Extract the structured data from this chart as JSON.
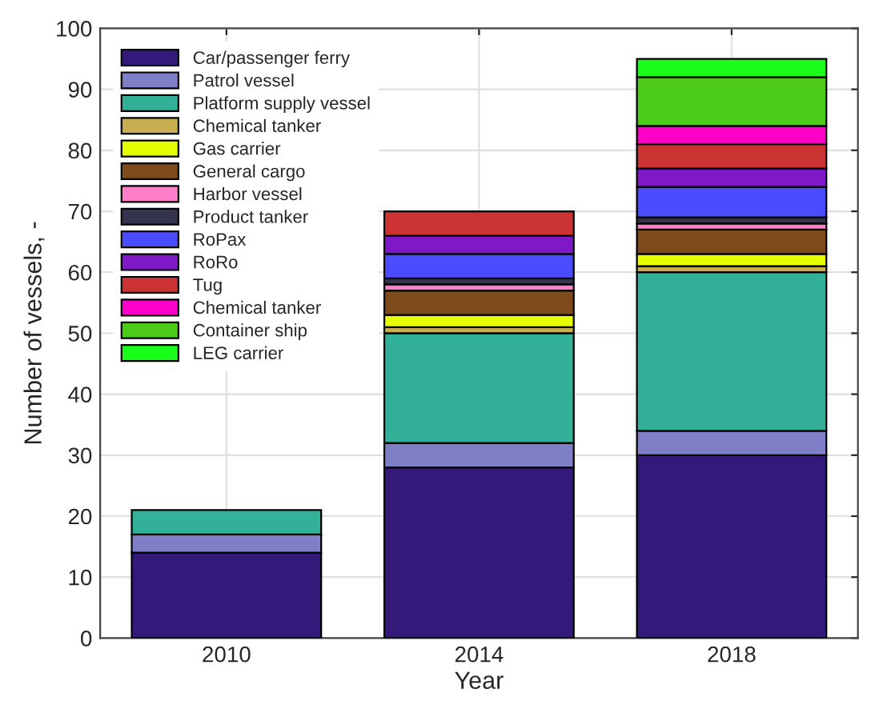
{
  "chart_data": {
    "type": "bar",
    "stacked": true,
    "xlabel": "Year",
    "ylabel": "Number of vessels, -",
    "categories": [
      "2010",
      "2014",
      "2018"
    ],
    "series": [
      {
        "name": "Car/passenger ferry",
        "color": "#33197a",
        "values": [
          14,
          28,
          30
        ]
      },
      {
        "name": "Patrol vessel",
        "color": "#7f7fc8",
        "values": [
          3,
          4,
          4
        ]
      },
      {
        "name": "Platform supply vessel",
        "color": "#33b098",
        "values": [
          4,
          18,
          26
        ]
      },
      {
        "name": "Chemical tanker",
        "color": "#c8ae50",
        "values": [
          0,
          1,
          1
        ]
      },
      {
        "name": "Gas carrier",
        "color": "#e6ff00",
        "values": [
          0,
          2,
          2
        ]
      },
      {
        "name": "General cargo",
        "color": "#7f4b1a",
        "values": [
          0,
          4,
          4
        ]
      },
      {
        "name": "Harbor vessel",
        "color": "#ff80c8",
        "values": [
          0,
          1,
          1
        ]
      },
      {
        "name": "Product tanker",
        "color": "#33334d",
        "values": [
          0,
          1,
          1
        ]
      },
      {
        "name": "RoPax",
        "color": "#4c4cff",
        "values": [
          0,
          4,
          5
        ]
      },
      {
        "name": "RoRo",
        "color": "#7f19c8",
        "values": [
          0,
          3,
          3
        ]
      },
      {
        "name": "Tug",
        "color": "#cc3333",
        "values": [
          0,
          4,
          4
        ]
      },
      {
        "name": "Chemical tanker",
        "color": "#ff00c8",
        "values": [
          0,
          0,
          3
        ]
      },
      {
        "name": "Container ship",
        "color": "#4ccc19",
        "values": [
          0,
          0,
          8
        ]
      },
      {
        "name": "LEG carrier",
        "color": "#19ff19",
        "values": [
          0,
          0,
          3
        ]
      }
    ],
    "ylim": [
      0,
      100
    ],
    "yticks": [
      0,
      10,
      20,
      30,
      40,
      50,
      60,
      70,
      80,
      90,
      100
    ],
    "grid": true,
    "legend": "top left"
  }
}
